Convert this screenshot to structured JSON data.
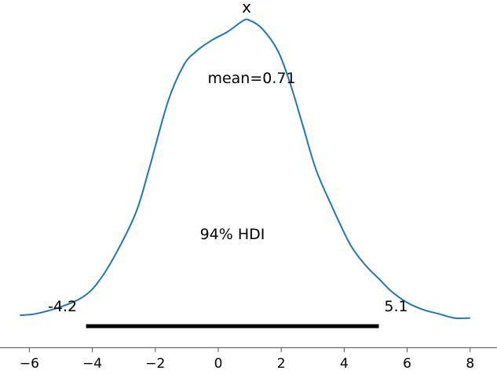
{
  "chart_data": {
    "type": "area",
    "title": "x",
    "xlabel": "",
    "ylabel": "",
    "xlim": [
      -6.5,
      8.8
    ],
    "ylim": [
      0,
      1
    ],
    "xticks": [
      -6,
      -4,
      -2,
      0,
      2,
      4,
      6,
      8
    ],
    "xtick_labels": [
      "−6",
      "−4",
      "−2",
      "0",
      "2",
      "4",
      "6",
      "8"
    ],
    "grid": false,
    "series": [
      {
        "color": "#1f77b4",
        "x": [
          -6.3,
          -5.8,
          -5.0,
          -4.3,
          -3.8,
          -3.2,
          -2.6,
          -2.2,
          -1.6,
          -1.1,
          -0.7,
          -0.2,
          0.3,
          0.8,
          1.0,
          1.4,
          1.9,
          2.3,
          2.7,
          3.1,
          3.6,
          4.2,
          4.7,
          5.1,
          5.5,
          6.0,
          6.5,
          7.0,
          7.5,
          8.0
        ],
        "y": [
          0.0,
          0.005,
          0.03,
          0.065,
          0.12,
          0.23,
          0.37,
          0.52,
          0.76,
          0.89,
          0.94,
          0.98,
          1.01,
          1.05,
          1.05,
          1.02,
          0.94,
          0.82,
          0.67,
          0.52,
          0.39,
          0.25,
          0.175,
          0.13,
          0.085,
          0.045,
          0.02,
          0.005,
          -0.01,
          -0.01
        ]
      }
    ],
    "mean": {
      "value": 0.71,
      "label": "mean=0.71"
    },
    "hdi": {
      "low": -4.2,
      "high": 5.1,
      "label": "94% HDI",
      "low_label": "-4.2",
      "high_label": "5.1"
    }
  }
}
